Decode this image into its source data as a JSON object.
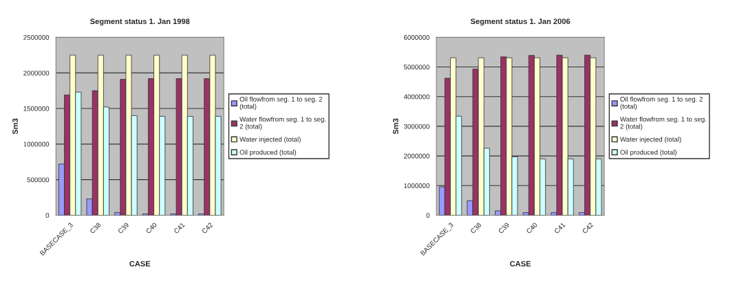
{
  "chart_data": [
    {
      "type": "bar",
      "title": "Segment status 1. Jan 1998",
      "xlabel": "CASE",
      "ylabel": "Sm3",
      "categories": [
        "BASECASE_3",
        "C38",
        "C39",
        "C40",
        "C41",
        "C42"
      ],
      "series": [
        {
          "name": "Oil flowfrom seg. 1 to seg. 2\n(total)",
          "color": "#9999ff",
          "values": [
            720000,
            230000,
            40000,
            20000,
            20000,
            20000
          ]
        },
        {
          "name": "Water flowfrom seg. 1 to seg.\n2 (total)",
          "color": "#993366",
          "values": [
            1690000,
            1750000,
            1910000,
            1920000,
            1920000,
            1920000
          ]
        },
        {
          "name": "Water injected (total)",
          "color": "#ffffcc",
          "values": [
            2250000,
            2250000,
            2250000,
            2250000,
            2250000,
            2250000
          ]
        },
        {
          "name": "Oil produced (total)",
          "color": "#ccffff",
          "values": [
            1730000,
            1520000,
            1400000,
            1390000,
            1390000,
            1390000
          ]
        }
      ],
      "ylim": [
        0,
        2500000
      ],
      "yticks": [
        0,
        500000,
        1000000,
        1500000,
        2000000,
        2500000
      ],
      "grid": "y",
      "legend": "right"
    },
    {
      "type": "bar",
      "title": "Segment status 1. Jan 2006",
      "xlabel": "CASE",
      "ylabel": "Sm3",
      "categories": [
        "BASECASE_3",
        "C38",
        "C39",
        "C40",
        "C41",
        "C42"
      ],
      "series": [
        {
          "name": "Oil flowfrom seg. 1 to seg. 2\n(total)",
          "color": "#9999ff",
          "values": [
            960000,
            490000,
            150000,
            90000,
            90000,
            90000
          ]
        },
        {
          "name": "Water flowfrom seg. 1 to seg.\n2 (total)",
          "color": "#993366",
          "values": [
            4620000,
            4930000,
            5340000,
            5390000,
            5400000,
            5400000
          ]
        },
        {
          "name": "Water injected (total)",
          "color": "#ffffcc",
          "values": [
            5310000,
            5310000,
            5310000,
            5310000,
            5310000,
            5310000
          ]
        },
        {
          "name": "Oil produced (total)",
          "color": "#ccffff",
          "values": [
            3340000,
            2260000,
            1970000,
            1900000,
            1900000,
            1900000
          ]
        }
      ],
      "ylim": [
        0,
        6000000
      ],
      "yticks": [
        0,
        1000000,
        2000000,
        3000000,
        4000000,
        5000000,
        6000000
      ],
      "grid": "y",
      "legend": "right"
    }
  ]
}
